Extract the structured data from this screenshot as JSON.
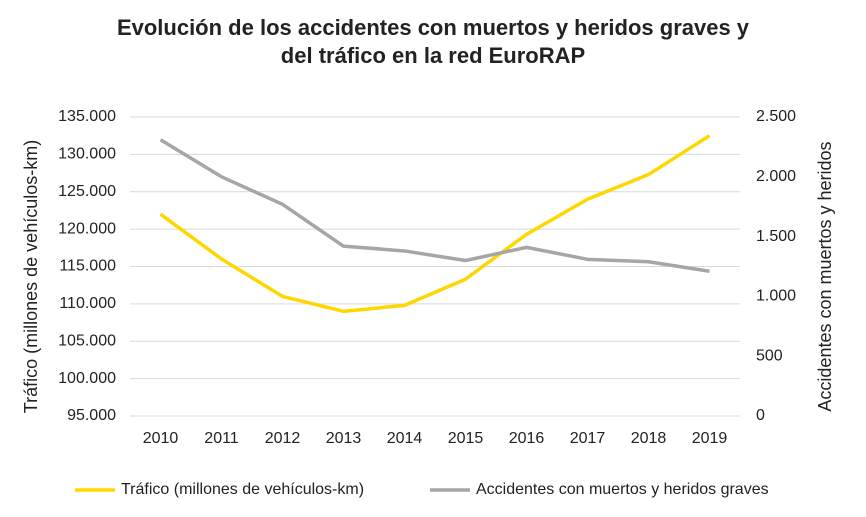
{
  "chart_data": {
    "type": "line",
    "title": "Evolución de los accidentes con muertos y heridos graves y del tráfico en la red EuroRAP",
    "ylabel": "Tráfico (millones de vehículos-km)",
    "y2label": "Accidentes con muertos y heridos",
    "categories": [
      "2010",
      "2011",
      "2012",
      "2013",
      "2014",
      "2015",
      "2016",
      "2017",
      "2018",
      "2019"
    ],
    "series": [
      {
        "name": "Tráfico (millones de vehículos-km)",
        "color": "#ffd700",
        "values": [
          122000,
          116000,
          111000,
          109000,
          109800,
          113300,
          119300,
          124000,
          127300,
          132500
        ]
      },
      {
        "name": "Accidentes con muertos y heridos graves",
        "color": "#a6a6a6",
        "axis": "y2",
        "values": [
          2310,
          2000,
          1770,
          1420,
          1380,
          1300,
          1410,
          1310,
          1290,
          1210
        ]
      }
    ],
    "ylim": [
      95000,
      135000
    ],
    "yticks": [
      {
        "value": 95000,
        "label": "95.000"
      },
      {
        "value": 100000,
        "label": "100.000"
      },
      {
        "value": 105000,
        "label": "105.000"
      },
      {
        "value": 110000,
        "label": "110.000"
      },
      {
        "value": 115000,
        "label": "115.000"
      },
      {
        "value": 120000,
        "label": "120.000"
      },
      {
        "value": 125000,
        "label": "125.000"
      },
      {
        "value": 130000,
        "label": "130.000"
      },
      {
        "value": 135000,
        "label": "135.000"
      }
    ],
    "y2lim": [
      0,
      2500
    ],
    "y2ticks": [
      0,
      500,
      {
        "value": 1000,
        "label": "1.000"
      },
      {
        "value": 1500,
        "label": "1.500"
      },
      {
        "value": 2000,
        "label": "2.000"
      },
      {
        "value": 2500,
        "label": "2.500"
      }
    ],
    "grid": true,
    "legend": "bottom"
  }
}
